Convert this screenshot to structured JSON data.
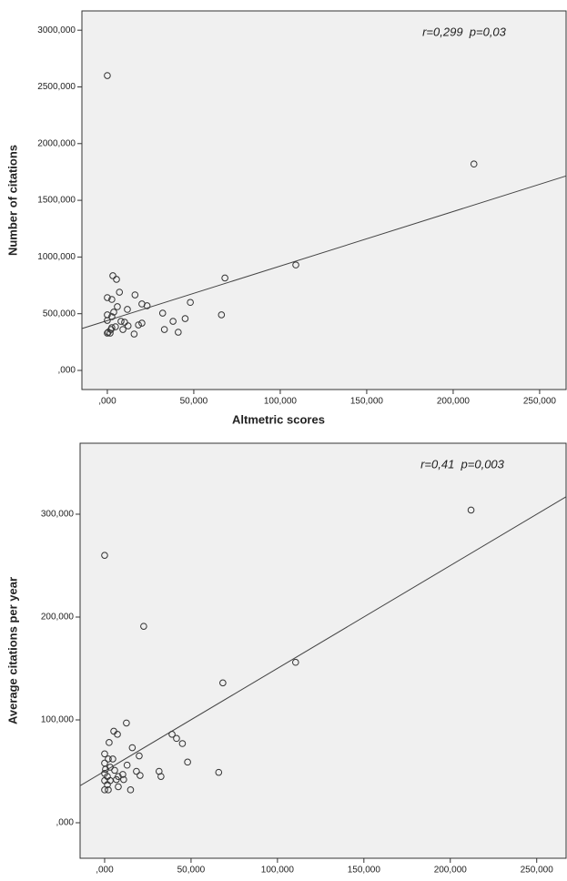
{
  "chart_data": [
    {
      "type": "scatter",
      "xlabel": "Altmetric scores",
      "ylabel": "Number of citations",
      "annotation": "r=0,299  p=0,03",
      "marker_color": "#333333",
      "line_color": "#444444",
      "plot_background": "#f0f0f0",
      "x": [
        0,
        212000,
        109000,
        68000,
        66000,
        48000,
        45000,
        38000,
        41000,
        32000,
        33000,
        16000,
        20000,
        23000,
        20000,
        18000,
        15500,
        11600,
        12000,
        7000,
        5300,
        3200,
        0,
        2600,
        5800,
        0,
        2600,
        0,
        4700,
        2100,
        0,
        1600,
        2600,
        7900,
        10000,
        9000,
        500,
        3700
      ],
      "y": [
        2600000,
        1820000,
        930000,
        815000,
        490000,
        600000,
        457000,
        433000,
        337000,
        505000,
        361000,
        666000,
        586000,
        570000,
        417000,
        401000,
        321000,
        538000,
        393000,
        690000,
        803000,
        835000,
        642000,
        626000,
        562000,
        490000,
        474000,
        441000,
        385000,
        361000,
        329000,
        329000,
        377000,
        433000,
        425000,
        361000,
        337000,
        514000
      ],
      "fit_line": {
        "x": [
          -14700,
          265300
        ],
        "y": [
          369000,
          1715000
        ]
      },
      "xlim": [
        -14700,
        265300
      ],
      "ylim": [
        -168500,
        3170000
      ],
      "xticks": [
        {
          "value": 0,
          "label": ",000"
        },
        {
          "value": 50000,
          "label": "50,000"
        },
        {
          "value": 100000,
          "label": "100,000"
        },
        {
          "value": 150000,
          "label": "150,000"
        },
        {
          "value": 200000,
          "label": "200,000"
        },
        {
          "value": 250000,
          "label": "250,000"
        }
      ],
      "yticks": [
        {
          "value": 0,
          "label": ",000"
        },
        {
          "value": 500000,
          "label": "500,000"
        },
        {
          "value": 1000000,
          "label": "1000,000"
        },
        {
          "value": 1500000,
          "label": "1500,000"
        },
        {
          "value": 2000000,
          "label": "2000,000"
        },
        {
          "value": 2500000,
          "label": "2500,000"
        },
        {
          "value": 3000000,
          "label": "3000,000"
        }
      ]
    },
    {
      "type": "scatter",
      "xlabel": "Altmetric scores",
      "ylabel": "Average citations per year",
      "annotation": "r=0,41  p=0,003",
      "marker_color": "#333333",
      "line_color": "#444444",
      "plot_background": "#f0f0f0",
      "x": [
        0,
        212000,
        22600,
        110500,
        68400,
        12600,
        39000,
        41600,
        45000,
        48000,
        66000,
        31500,
        32600,
        16000,
        20000,
        18400,
        20500,
        15000,
        5300,
        7400,
        2600,
        0,
        2100,
        4700,
        0,
        500,
        3200,
        5800,
        0,
        1600,
        7900,
        10500,
        11000,
        7900,
        0,
        1600,
        0,
        2100,
        3200,
        6800,
        13000
      ],
      "y": [
        260000,
        304000,
        191000,
        156000,
        136000,
        97000,
        86000,
        82000,
        77000,
        59000,
        49000,
        50000,
        45000,
        73000,
        65000,
        50000,
        46000,
        32000,
        89000,
        86000,
        78000,
        67000,
        62000,
        62000,
        58000,
        52000,
        54000,
        51000,
        48000,
        45000,
        45000,
        47000,
        42000,
        35000,
        41000,
        37000,
        32000,
        32000,
        41000,
        42000,
        56000
      ],
      "fit_line": {
        "x": [
          -14200,
          267000
        ],
        "y": [
          36000,
          317000
        ]
      },
      "xlim": [
        -14200,
        267000
      ],
      "ylim": [
        -34500,
        369000
      ],
      "xticks": [
        {
          "value": 0,
          "label": ",000"
        },
        {
          "value": 50000,
          "label": "50,000"
        },
        {
          "value": 100000,
          "label": "100,000"
        },
        {
          "value": 150000,
          "label": "150,000"
        },
        {
          "value": 200000,
          "label": "200,000"
        },
        {
          "value": 250000,
          "label": "250,000"
        }
      ],
      "yticks": [
        {
          "value": 0,
          "label": ",000"
        },
        {
          "value": 100000,
          "label": "100,000"
        },
        {
          "value": 200000,
          "label": "200,000"
        },
        {
          "value": 300000,
          "label": "300,000"
        }
      ]
    }
  ]
}
